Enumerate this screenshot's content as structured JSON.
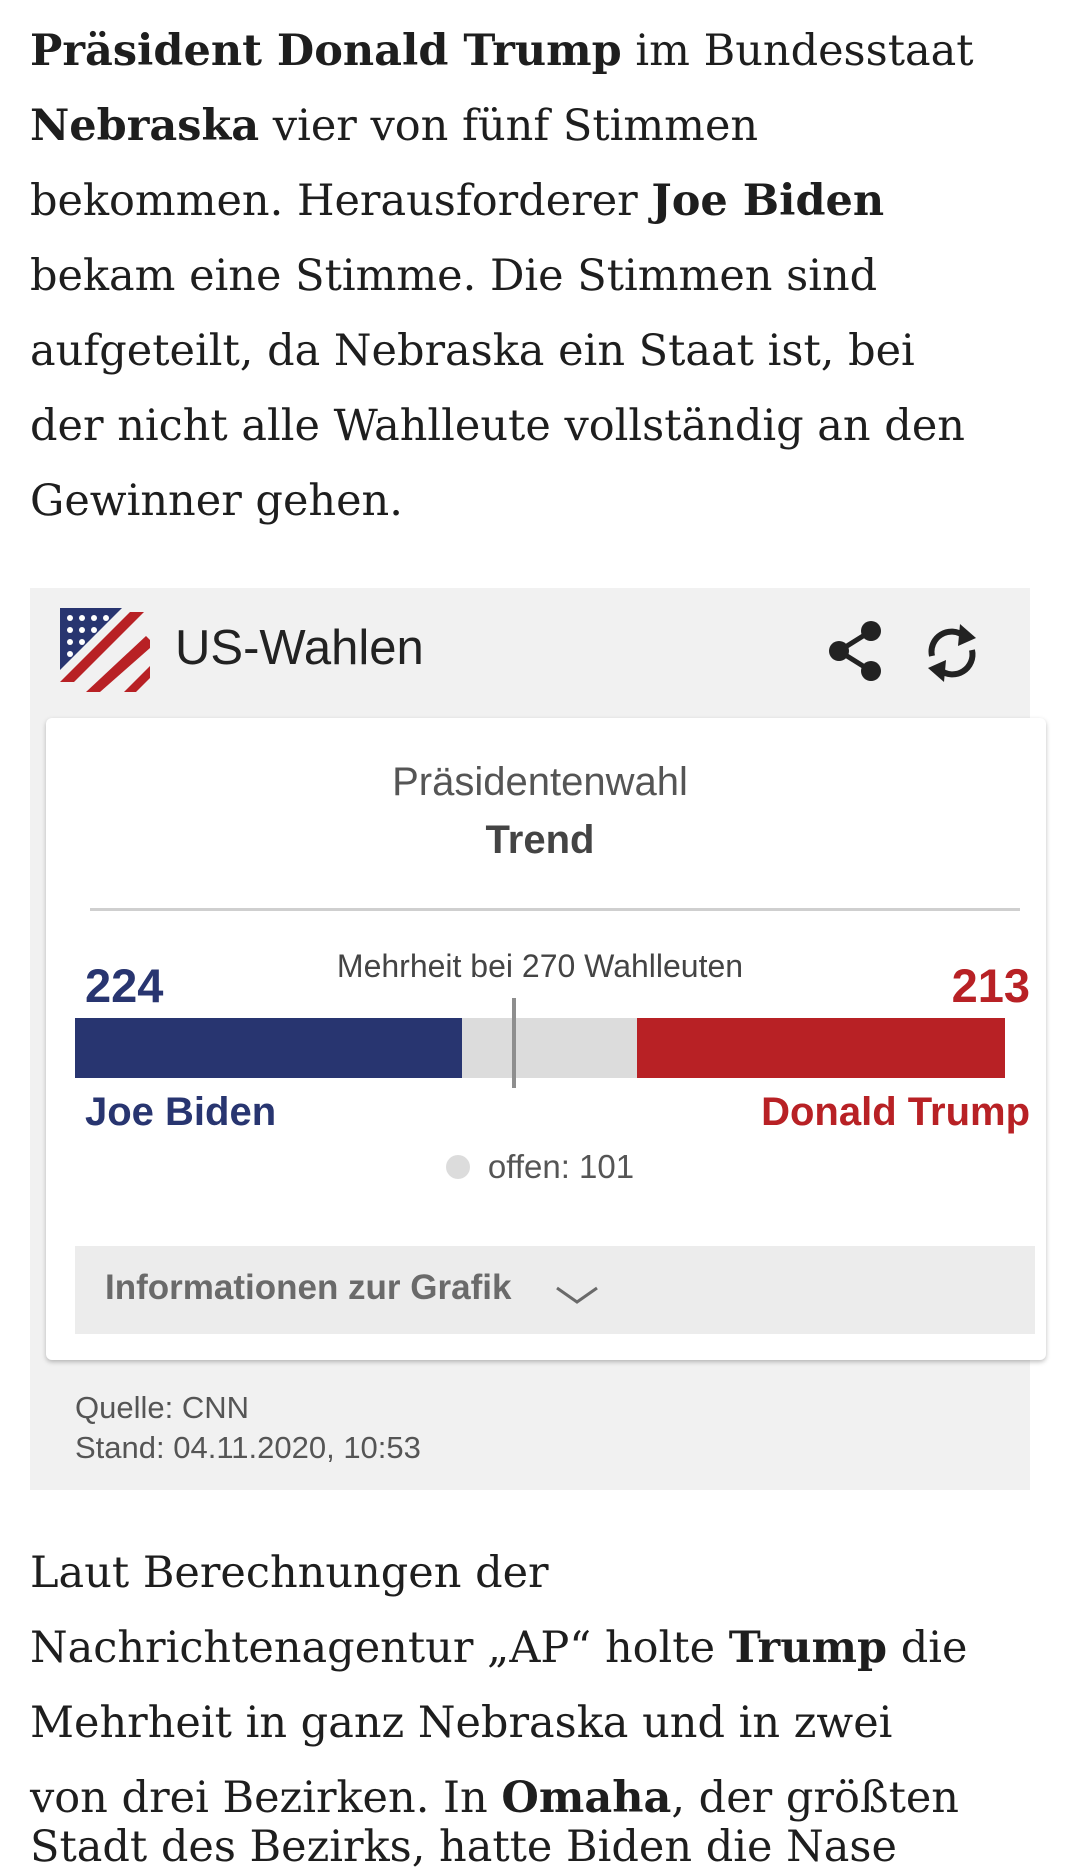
{
  "article": {
    "para1_l1_b1": "Präsident Donald Trump",
    "para1_l1_t1": " im Bundesstaat",
    "para1_l2_b1": "Nebraska",
    "para1_l2_t1": " vier von fünf Stimmen",
    "para1_l3_t1": "bekommen. Herausforderer ",
    "para1_l3_b1": "Joe Biden",
    "para1_l4": "bekam eine Stimme. Die Stimmen sind",
    "para1_l5": "aufgeteilt, da Nebraska ein Staat ist, bei",
    "para1_l6": "der nicht alle Wahlleute vollständig an den",
    "para1_l7": "Gewinner gehen.",
    "para2_l1": "Laut Berechnungen der",
    "para2_l2_t1": "Nachrichtenagentur „AP“ holte ",
    "para2_l2_b1": "Trump",
    "para2_l2_t2": " die",
    "para2_l3": "Mehrheit in ganz Nebraska und in zwei",
    "para2_l4_t1": "von drei Bezirken. In ",
    "para2_l4_b1": "Omaha",
    "para2_l4_t2": ", der größten",
    "para2_l5": "Stadt des Bezirks, hatte Biden die Nase"
  },
  "widget": {
    "title": "US-Wahlen",
    "icons": {
      "logo": "us-flag-logo",
      "share": "share-icon",
      "refresh": "refresh-icon"
    },
    "card_title": "Präsidentenwahl",
    "card_subtitle": "Trend",
    "majority_label": "Mehrheit bei 270 Wahlleuten",
    "left": {
      "count": "224",
      "name": "Joe Biden",
      "color": "#283570"
    },
    "right": {
      "count": "213",
      "name": "Donald Trump",
      "color": "#b82125"
    },
    "open_label": "offen: 101",
    "info_label": "Informationen zur Grafik",
    "source": "Quelle: CNN",
    "stand": "Stand: 04.11.2020, 10:53"
  },
  "chart_data": {
    "type": "bar",
    "categories": [
      "Joe Biden",
      "offen",
      "Donald Trump"
    ],
    "values": [
      224,
      101,
      213
    ],
    "total": 538,
    "threshold": 270
  }
}
